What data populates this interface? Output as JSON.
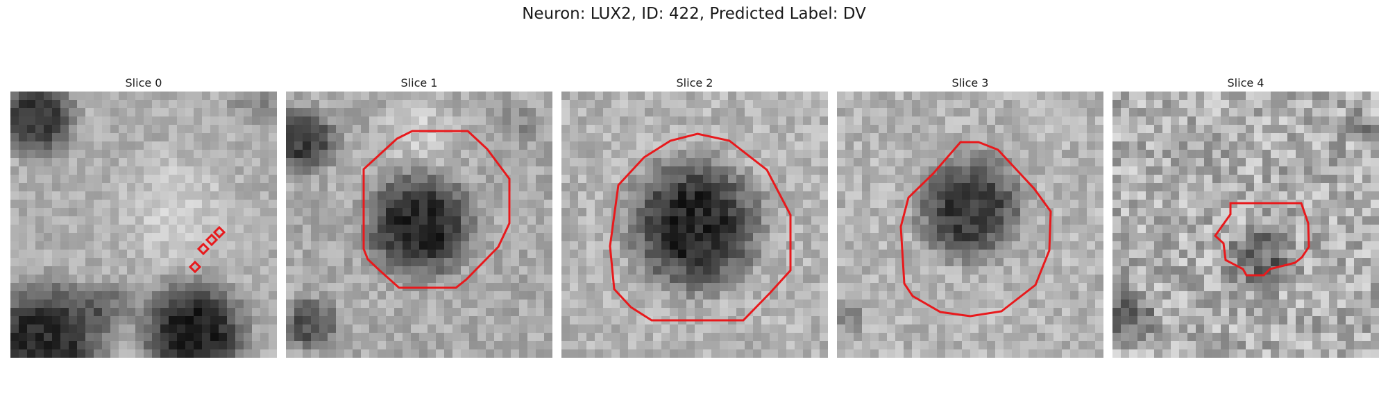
{
  "figure": {
    "title": "Neuron: LUX2, ID: 422, Predicted Label: DV"
  },
  "panels": [
    {
      "label": "Slice 0"
    },
    {
      "label": "Slice 1"
    },
    {
      "label": "Slice 2"
    },
    {
      "label": "Slice 3"
    },
    {
      "label": "Slice 4"
    }
  ],
  "colors": {
    "contour": "#e8191c",
    "background": "#ffffff"
  }
}
